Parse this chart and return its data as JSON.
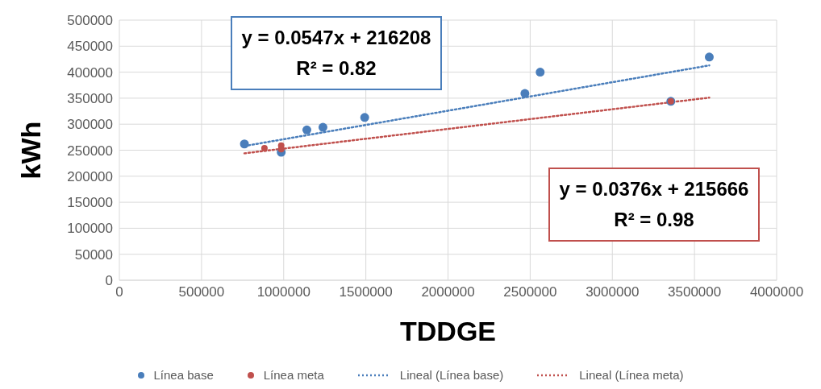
{
  "chart_data": {
    "type": "scatter",
    "xlabel": "TDDGE",
    "ylabel": "kWh",
    "xlim": [
      0,
      4000000
    ],
    "xticks": [
      0,
      500000,
      1000000,
      1500000,
      2000000,
      2500000,
      3000000,
      3500000,
      4000000
    ],
    "ylim": [
      0,
      500000
    ],
    "yticks": [
      0,
      50000,
      100000,
      150000,
      200000,
      250000,
      300000,
      350000,
      400000,
      450000,
      500000
    ],
    "grid": true,
    "legend": "bottom",
    "annotations": [
      "y = 0.0547x + 216208\nR² = 0.82",
      "y = 0.0376x + 215666\nR² = 0.98"
    ],
    "series": [
      {
        "name": "Línea base",
        "marker": "circle",
        "color": "#4a7ebb",
        "x": [
          761000,
          985000,
          1141000,
          1239000,
          1493000,
          2468000,
          2561000,
          3356000,
          3590000
        ],
        "values": [
          262000,
          246000,
          289000,
          294000,
          313000,
          359000,
          400000,
          344000,
          429000
        ]
      },
      {
        "name": "Línea meta",
        "marker": "circle",
        "color": "#c0504d",
        "x": [
          883000,
          985000,
          985000,
          3356000
        ],
        "values": [
          254000,
          252000,
          259000,
          344000
        ]
      },
      {
        "name": "Lineal (Línea base)",
        "type": "line",
        "marker": "none",
        "line_style": "dotted",
        "color": "#4a7ebb",
        "x": [
          761000,
          3590000
        ],
        "values": [
          258000,
          413000
        ]
      },
      {
        "name": "Lineal (Línea meta)",
        "type": "line",
        "marker": "none",
        "line_style": "dotted",
        "color": "#c0504d",
        "x": [
          761000,
          3590000
        ],
        "values": [
          244000,
          351000
        ]
      }
    ]
  }
}
